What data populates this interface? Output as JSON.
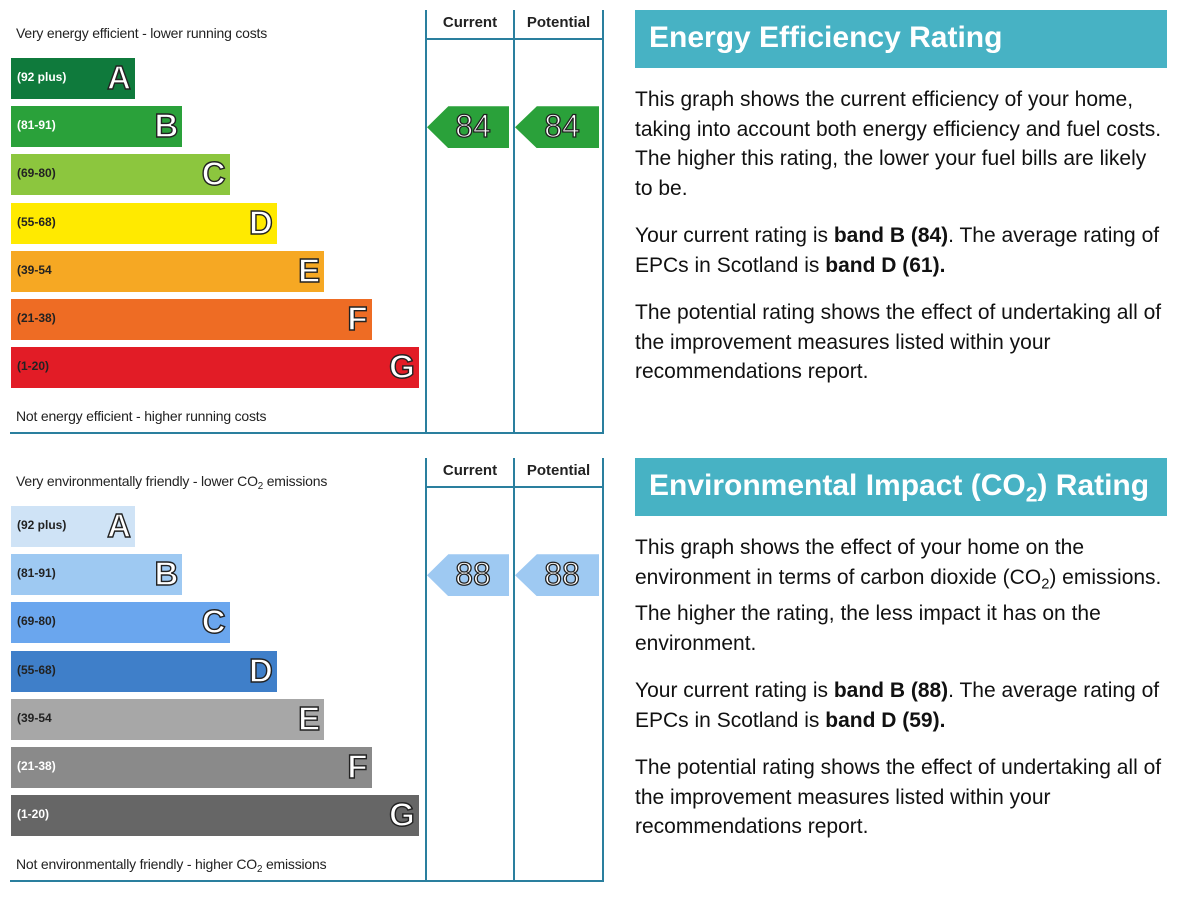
{
  "colors": {
    "frame": "#2a7f9e",
    "heading_bg": "#47b2c4"
  },
  "chart_data": [
    {
      "type": "bar",
      "title": "Energy Efficiency Rating",
      "top_caption": "Very energy efficient - lower running costs",
      "bottom_caption": "Not energy efficient - higher running costs",
      "column_headers": [
        "Current",
        "Potential"
      ],
      "bands": [
        {
          "letter": "A",
          "range": "(92 plus)",
          "color": "#0f7a3c",
          "text_color": "#ffffff"
        },
        {
          "letter": "B",
          "range": "(81-91)",
          "color": "#2aa13a",
          "text_color": "#ffffff"
        },
        {
          "letter": "C",
          "range": "(69-80)",
          "color": "#8cc63e",
          "text_color": "#222222"
        },
        {
          "letter": "D",
          "range": "(55-68)",
          "color": "#ffea00",
          "text_color": "#222222"
        },
        {
          "letter": "E",
          "range": "(39-54",
          "color": "#f6a823",
          "text_color": "#222222"
        },
        {
          "letter": "F",
          "range": "(21-38)",
          "color": "#ee6c24",
          "text_color": "#222222"
        },
        {
          "letter": "G",
          "range": "(1-20)",
          "color": "#e21c26",
          "text_color": "#222222"
        }
      ],
      "current": {
        "value": 84,
        "label": "84",
        "color": "#2aa13a"
      },
      "potential": {
        "value": 84,
        "label": "84",
        "color": "#2aa13a"
      }
    },
    {
      "type": "bar",
      "title_pre": "Environmental Impact (CO",
      "title_sub": "2",
      "title_post": ") Rating",
      "top_caption_pre": "Very environmentally friendly - lower CO",
      "top_caption_sub": "2",
      "top_caption_post": " emissions",
      "bottom_caption_pre": "Not environmentally friendly - higher CO",
      "bottom_caption_sub": "2",
      "bottom_caption_post": " emissions",
      "column_headers": [
        "Current",
        "Potential"
      ],
      "bands": [
        {
          "letter": "A",
          "range": "(92 plus)",
          "color": "#cfe3f6",
          "text_color": "#222222"
        },
        {
          "letter": "B",
          "range": "(81-91)",
          "color": "#9ec9f2",
          "text_color": "#222222"
        },
        {
          "letter": "C",
          "range": "(69-80)",
          "color": "#6aa6ee",
          "text_color": "#222222"
        },
        {
          "letter": "D",
          "range": "(55-68)",
          "color": "#3f7fc9",
          "text_color": "#222222"
        },
        {
          "letter": "E",
          "range": "(39-54",
          "color": "#a7a7a7",
          "text_color": "#222222"
        },
        {
          "letter": "F",
          "range": "(21-38)",
          "color": "#8a8a8a",
          "text_color": "#ffffff"
        },
        {
          "letter": "G",
          "range": "(1-20)",
          "color": "#666666",
          "text_color": "#ffffff"
        }
      ],
      "current": {
        "value": 88,
        "label": "88",
        "color": "#9ec9f2"
      },
      "potential": {
        "value": 88,
        "label": "88",
        "color": "#9ec9f2"
      }
    }
  ],
  "energy_text": {
    "p1": "This graph shows the current efficiency of your home, taking into account both energy efficiency and fuel costs. The higher this rating, the lower your fuel bills are likely to be.",
    "p2_a": "Your current rating is ",
    "p2_b": "band B (84)",
    "p2_c": ". The average rating of EPCs in Scotland is ",
    "p2_d": "band D (61).",
    "p3": "The potential rating shows the effect of undertaking all of the improvement measures listed within your recommendations report."
  },
  "env_text": {
    "p1_a": "This graph shows the effect of your home on the environment in terms of carbon dioxide (CO",
    "p1_sub": "2",
    "p1_b": ") emissions. The higher the rating, the less impact it has on the environment.",
    "p2_a": "Your current rating is ",
    "p2_b": "band B (88)",
    "p2_c": ". The average rating of EPCs in Scotland is ",
    "p2_d": "band D (59).",
    "p3": "The potential rating shows the effect of undertaking all of the improvement measures listed within your recommendations report."
  }
}
